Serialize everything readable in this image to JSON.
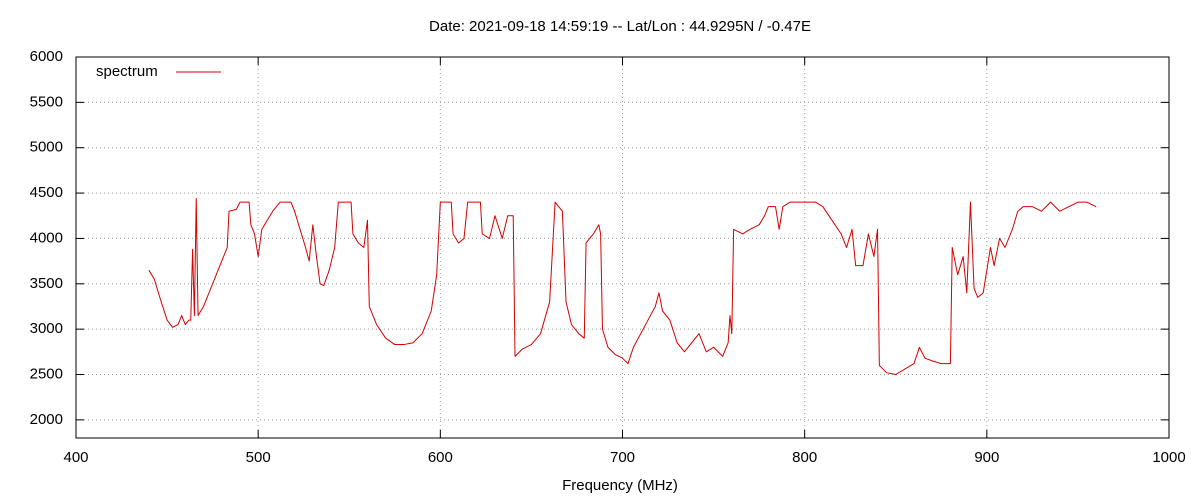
{
  "chart_data": {
    "type": "line",
    "title": "Date: 2021-09-18 14:59:19  --  Lat/Lon : 44.9295N / -0.47E",
    "x_label": "Frequency (MHz)",
    "x": [
      440,
      443,
      446,
      450,
      453,
      456,
      458,
      460,
      462,
      463,
      464,
      465,
      466,
      467,
      470,
      475,
      480,
      483,
      484,
      488,
      490,
      495,
      496,
      498,
      500,
      502,
      505,
      508,
      512,
      518,
      520,
      523,
      526,
      528,
      530,
      532,
      534,
      536,
      539,
      542,
      544,
      551,
      552,
      555,
      558,
      560,
      561,
      565,
      570,
      575,
      580,
      585,
      590,
      595,
      598,
      600,
      606,
      607,
      610,
      613,
      615,
      622,
      623,
      627,
      630,
      634,
      637,
      640,
      641,
      645,
      650,
      655,
      660,
      663,
      667,
      669,
      672,
      676,
      679,
      680,
      684,
      687,
      688,
      689,
      692,
      696,
      700,
      703,
      706,
      710,
      714,
      718,
      720,
      722,
      726,
      730,
      734,
      738,
      742,
      746,
      750,
      755,
      758,
      759,
      760,
      761,
      766,
      770,
      775,
      778,
      780,
      784,
      786,
      788,
      792,
      800,
      806,
      810,
      815,
      820,
      823,
      826,
      828,
      832,
      835,
      838,
      840,
      841,
      845,
      850,
      855,
      860,
      863,
      866,
      870,
      875,
      880,
      881,
      884,
      887,
      889,
      891,
      893,
      895,
      898,
      902,
      904,
      907,
      910,
      914,
      917,
      920,
      925,
      930,
      935,
      940,
      945,
      950,
      955,
      960
    ],
    "series": [
      {
        "name": "spectrum",
        "color": "#d40000",
        "values": [
          3650,
          3550,
          3350,
          3100,
          3020,
          3050,
          3150,
          3050,
          3100,
          3100,
          3880,
          3150,
          4440,
          3150,
          3250,
          3500,
          3750,
          3900,
          4300,
          4320,
          4400,
          4400,
          4150,
          4050,
          3800,
          4100,
          4200,
          4300,
          4400,
          4400,
          4300,
          4100,
          3900,
          3750,
          4150,
          3800,
          3500,
          3480,
          3650,
          3900,
          4400,
          4400,
          4050,
          3950,
          3900,
          4200,
          3250,
          3050,
          2900,
          2830,
          2830,
          2850,
          2950,
          3200,
          3600,
          4400,
          4400,
          4050,
          3950,
          4000,
          4400,
          4400,
          4050,
          4000,
          4250,
          4000,
          4250,
          4250,
          2700,
          2780,
          2830,
          2950,
          3300,
          4400,
          4300,
          3300,
          3050,
          2950,
          2900,
          3950,
          4050,
          4150,
          4050,
          3000,
          2800,
          2720,
          2680,
          2620,
          2800,
          2950,
          3100,
          3250,
          3400,
          3200,
          3100,
          2850,
          2750,
          2850,
          2950,
          2750,
          2800,
          2700,
          2850,
          3150,
          2950,
          4100,
          4050,
          4100,
          4150,
          4250,
          4350,
          4350,
          4100,
          4350,
          4400,
          4400,
          4400,
          4350,
          4200,
          4050,
          3900,
          4100,
          3700,
          3700,
          4050,
          3800,
          4100,
          2600,
          2520,
          2500,
          2560,
          2620,
          2800,
          2680,
          2650,
          2620,
          2620,
          3900,
          3600,
          3800,
          3400,
          4400,
          3450,
          3350,
          3400,
          3900,
          3700,
          4000,
          3900,
          4100,
          4300,
          4350,
          4350,
          4300,
          4400,
          4300,
          4350,
          4400,
          4400,
          4350
        ]
      }
    ],
    "xlim": [
      400,
      1000
    ],
    "xticks": [
      400,
      500,
      600,
      700,
      800,
      900,
      1000
    ],
    "ylim": [
      1800,
      6000
    ],
    "yticks": [
      2000,
      2500,
      3000,
      3500,
      4000,
      4500,
      5000,
      5500,
      6000
    ],
    "grid": true,
    "legend": "top-left"
  }
}
